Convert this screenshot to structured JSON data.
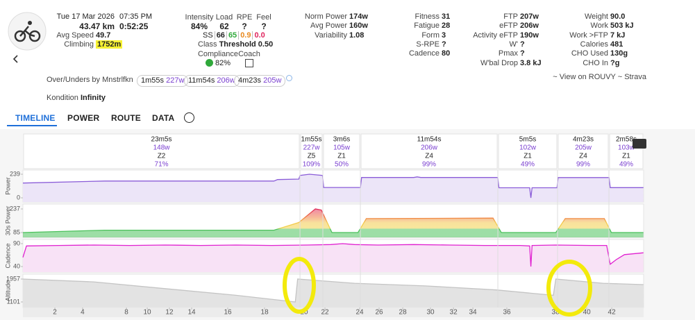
{
  "header": {
    "activity": {
      "date": "Tue 17 Mar 2026",
      "time": "07:35 PM",
      "distance": "43.47 km",
      "duration": "0:52:25"
    },
    "top_metrics": [
      {
        "label": "Intensity",
        "value": "84%"
      },
      {
        "label": "Load",
        "value": "62"
      },
      {
        "label": "RPE",
        "value": "?"
      },
      {
        "label": "Feel",
        "value": "?"
      }
    ],
    "ss": {
      "label": "SS",
      "values": [
        "66",
        "65",
        "0.9",
        "0.0"
      ]
    },
    "class": {
      "label": "Class",
      "value": "Threshold 0.50"
    },
    "compliance": {
      "label": "Compliance",
      "value": "82%"
    },
    "coach": {
      "label": "Coach"
    },
    "columns": [
      [
        {
          "label": "Avg Speed",
          "value": "49.7"
        },
        {
          "label": "Climbing",
          "value": "1752m"
        }
      ],
      [
        {
          "label": "Norm Power",
          "value": "174w"
        },
        {
          "label": "Avg Power",
          "value": "160w"
        },
        {
          "label": "Variability",
          "value": "1.08"
        }
      ],
      [
        {
          "label": "Fitness",
          "value": "31"
        },
        {
          "label": "Fatigue",
          "value": "28"
        },
        {
          "label": "Form",
          "value": "3"
        },
        {
          "label": "S-RPE",
          "value": "?"
        },
        {
          "label": "Cadence",
          "value": "80"
        }
      ],
      [
        {
          "label": "FTP",
          "value": "207w"
        },
        {
          "label": "eFTP",
          "value": "206w"
        },
        {
          "label": "Activity eFTP",
          "value": "190w"
        },
        {
          "label": "W'",
          "value": "?"
        },
        {
          "label": "Pmax",
          "value": "?"
        },
        {
          "label": "W'bal Drop",
          "value": "3.8 kJ"
        }
      ],
      [
        {
          "label": "Weight",
          "value": "90.0"
        },
        {
          "label": "Work",
          "value": "503 kJ"
        },
        {
          "label": "Work >FTP",
          "value": "7 kJ"
        },
        {
          "label": "Calories",
          "value": "481"
        },
        {
          "label": "CHO Used",
          "value": "130g"
        },
        {
          "label": "CHO In",
          "value": "?g"
        }
      ]
    ],
    "over_unders": {
      "label": "Over/Unders by Mnstrlfkn",
      "chips": [
        {
          "duration": "1m55s",
          "power": "227w"
        },
        {
          "duration": "11m54s",
          "power": "206w"
        },
        {
          "duration": "4m23s",
          "power": "205w"
        }
      ]
    },
    "kondition": {
      "label": "Kondition",
      "value": "Infinity"
    },
    "links": "~ View on ROUVY ~ Strava"
  },
  "tabs": [
    "TIMELINE",
    "POWER",
    "ROUTE",
    "DATA"
  ],
  "chart_data": {
    "type": "line",
    "xlim": [
      0,
      52.42
    ],
    "xticks": [
      {
        "value": 2.7,
        "label": "2"
      },
      {
        "value": 5.04,
        "label": "4"
      },
      {
        "value": 8.74,
        "label": "8"
      },
      {
        "value": 10.5,
        "label": "10"
      },
      {
        "value": 12.37,
        "label": "12"
      },
      {
        "value": 14.25,
        "label": "14"
      },
      {
        "value": 17.3,
        "label": "16"
      },
      {
        "value": 20.41,
        "label": "18"
      },
      {
        "value": 23.75,
        "label": "20"
      },
      {
        "value": 25.51,
        "label": "22"
      },
      {
        "value": 28.44,
        "label": "24"
      },
      {
        "value": 30.08,
        "label": "26"
      },
      {
        "value": 32.08,
        "label": "28"
      },
      {
        "value": 34.42,
        "label": "30"
      },
      {
        "value": 36.36,
        "label": "32"
      },
      {
        "value": 38.0,
        "label": "34"
      },
      {
        "value": 40.87,
        "label": "36"
      },
      {
        "value": 44.98,
        "label": "38"
      },
      {
        "value": 47.62,
        "label": "40"
      },
      {
        "value": 49.73,
        "label": "42"
      }
    ],
    "intervals": [
      {
        "start": 0,
        "end": 23.4,
        "duration": "23m5s",
        "power": "148w",
        "zone": "Z2",
        "percent": "71%"
      },
      {
        "start": 23.4,
        "end": 25.33,
        "duration": "1m55s",
        "power": "227w",
        "zone": "Z5",
        "percent": "109%"
      },
      {
        "start": 25.33,
        "end": 28.5,
        "duration": "3m6s",
        "power": "105w",
        "zone": "Z1",
        "percent": "50%"
      },
      {
        "start": 28.5,
        "end": 40.11,
        "duration": "11m54s",
        "power": "206w",
        "zone": "Z4",
        "percent": "99%"
      },
      {
        "start": 40.11,
        "end": 45.15,
        "duration": "5m5s",
        "power": "102w",
        "zone": "Z1",
        "percent": "49%"
      },
      {
        "start": 45.15,
        "end": 49.49,
        "duration": "4m23s",
        "power": "205w",
        "zone": "Z4",
        "percent": "99%"
      },
      {
        "start": 49.49,
        "end": 52.42,
        "duration": "2m58s",
        "power": "103w",
        "zone": "Z1",
        "percent": "49%"
      }
    ],
    "panels": [
      {
        "name": "Power",
        "ylim": [
          0,
          239
        ],
        "yticks": [
          0,
          239
        ],
        "color": "#8a5cd8",
        "x": [
          0,
          6.9,
          21.2,
          21.5,
          23.3,
          23.4,
          24.2,
          25.3,
          25.4,
          28.5,
          28.6,
          33.0,
          33.3,
          33.6,
          40.1,
          40.2,
          42.8,
          42.9,
          43.0,
          45.1,
          45.2,
          49.5,
          49.6,
          52.4
        ],
        "values": [
          150,
          170,
          170,
          185,
          190,
          227,
          239,
          227,
          105,
          105,
          206,
          206,
          212,
          206,
          206,
          102,
          102,
          0,
          102,
          102,
          205,
          205,
          103,
          103
        ]
      },
      {
        "name": "30s Power",
        "ylim": [
          85,
          237
        ],
        "yticks": [
          85,
          237
        ],
        "color": "#e0245e",
        "x": [
          0,
          6.9,
          21.2,
          23.3,
          24.7,
          25.2,
          26.1,
          28.3,
          29.0,
          39.7,
          40.4,
          45.0,
          45.8,
          49.1,
          49.7,
          52.4
        ],
        "values": [
          85,
          100,
          100,
          150,
          237,
          230,
          85,
          85,
          175,
          178,
          85,
          85,
          175,
          175,
          85,
          85
        ]
      },
      {
        "name": "Cadence",
        "ylim": [
          40,
          90
        ],
        "yticks": [
          40,
          90
        ],
        "color": "#e020d0",
        "x": [
          0,
          0.3,
          3,
          6,
          9,
          12,
          15,
          18,
          21,
          24,
          26,
          27,
          28,
          30,
          33,
          36,
          39,
          42,
          42.8,
          42.9,
          43.0,
          45,
          48,
          49.3,
          49.6,
          50.1,
          50.8,
          52.4
        ],
        "values": [
          60,
          85,
          86,
          87,
          86,
          87,
          86,
          87,
          86,
          87,
          88,
          90,
          88,
          87,
          88,
          87,
          86,
          86,
          85,
          40,
          86,
          87,
          86,
          86,
          45,
          55,
          66,
          70
        ]
      },
      {
        "name": "Altitude",
        "ylim": [
          1101,
          1957
        ],
        "yticks": [
          1101,
          1957
        ],
        "color": "#c4c4c4",
        "x": [
          0,
          6,
          12,
          18,
          23.0,
          23.2,
          28,
          34,
          40,
          44.8,
          45.0,
          49,
          52.4
        ],
        "values": [
          1957,
          1850,
          1600,
          1350,
          1101,
          1957,
          1800,
          1700,
          1550,
          1350,
          1957,
          1800,
          1750
        ]
      }
    ]
  }
}
